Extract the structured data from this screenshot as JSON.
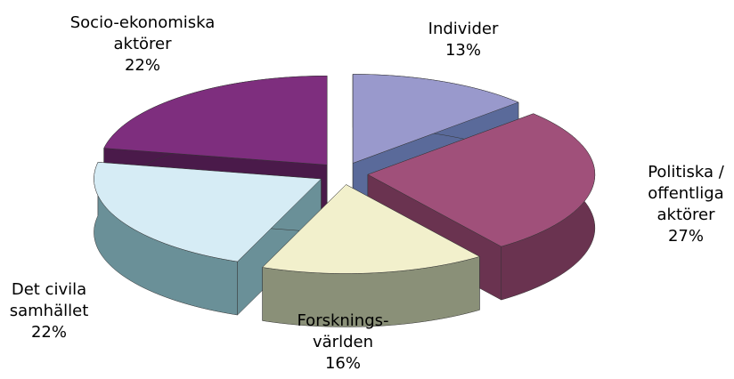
{
  "chart_data": {
    "type": "pie3d",
    "categories": [
      "Individer",
      "Politiska / offentliga aktörer",
      "Forsknings-världen",
      "Det civila samhället",
      "Socio-ekonomiska aktörer"
    ],
    "values": [
      13,
      27,
      16,
      22,
      22
    ],
    "value_labels": [
      "13%",
      "27%",
      "16%",
      "22%",
      "22%"
    ],
    "colors": [
      "#9999cc",
      "#a0507a",
      "#f2f0cc",
      "#d6ecf5",
      "#7e2e7e"
    ],
    "side_colors": [
      "#5a6a9a",
      "#6a3350",
      "#8a9078",
      "#6a9098",
      "#4a1a4a"
    ]
  }
}
